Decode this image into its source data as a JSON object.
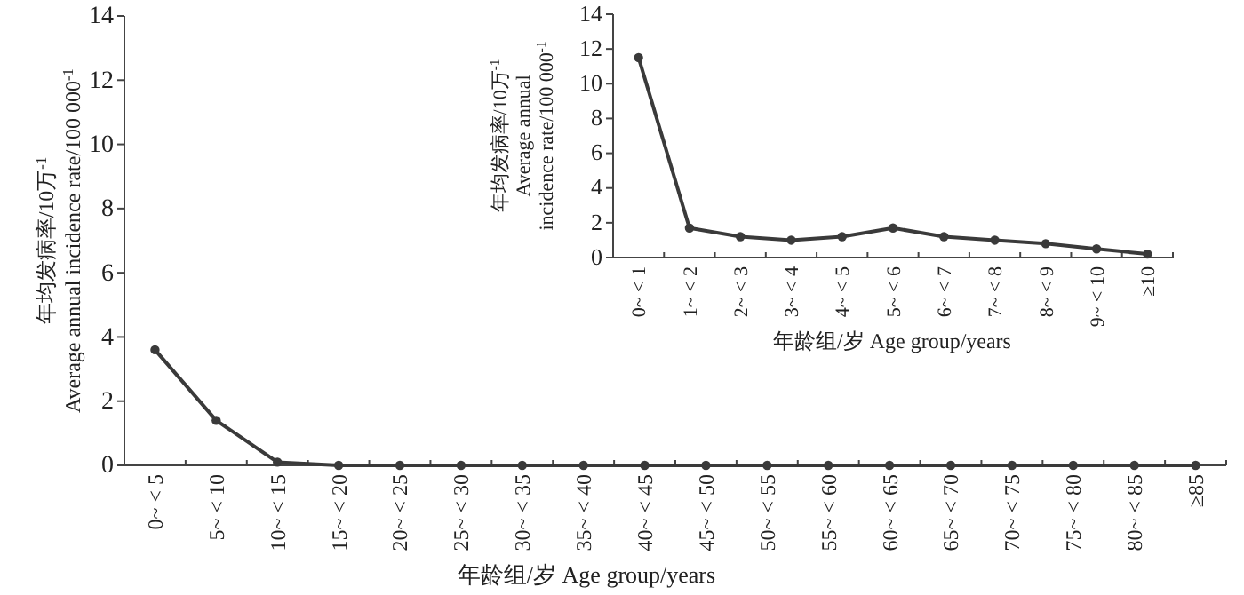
{
  "chart_data": [
    {
      "type": "line",
      "xlabel": "年龄组/岁 Age group/years",
      "ylabel": "年均发病率/10万$^{-1}$\nAverage annual incidence rate/100 000$^{-1}$",
      "categories": [
        "0~ < 5",
        "5~ < 10",
        "10~ < 15",
        "15~ < 20",
        "20~ < 25",
        "25~ < 30",
        "30~ < 35",
        "35~ < 40",
        "40~ < 45",
        "45~ < 50",
        "50~ < 55",
        "55~ < 60",
        "60~ < 65",
        "65~ < 70",
        "70~ < 75",
        "75~ < 80",
        "80~ < 85",
        "≥85"
      ],
      "series": [
        {
          "color": "#3a3a3a",
          "values": [
            3.6,
            1.4,
            0.1,
            0,
            0,
            0,
            0,
            0,
            0,
            0,
            0,
            0,
            0,
            0,
            0,
            0,
            0,
            0
          ]
        }
      ],
      "ylim": [
        0,
        14
      ],
      "yticks": [
        0,
        2,
        4,
        6,
        8,
        10,
        12,
        14
      ],
      "marker": "circle",
      "line_style": "solid"
    },
    {
      "type": "line",
      "xlabel": "年龄组/岁 Age group/years",
      "ylabel": "年均发病率/10万$^{-1}$\nAverage annual\nincidence rate/100 000$^{-1}$",
      "categories": [
        "0~ < 1",
        "1~ < 2",
        "2~ < 3",
        "3~ < 4",
        "4~ < 5",
        "5~ < 6",
        "6~ < 7",
        "7~ < 8",
        "8~ < 9",
        "9~ < 10",
        "≥10"
      ],
      "series": [
        {
          "color": "#3a3a3a",
          "values": [
            11.5,
            1.7,
            1.2,
            1.0,
            1.2,
            1.7,
            1.2,
            1.0,
            0.8,
            0.5,
            0.2
          ]
        }
      ],
      "ylim": [
        0,
        14
      ],
      "yticks": [
        0,
        2,
        4,
        6,
        8,
        10,
        12,
        14
      ],
      "marker": "circle",
      "line_style": "solid"
    }
  ]
}
